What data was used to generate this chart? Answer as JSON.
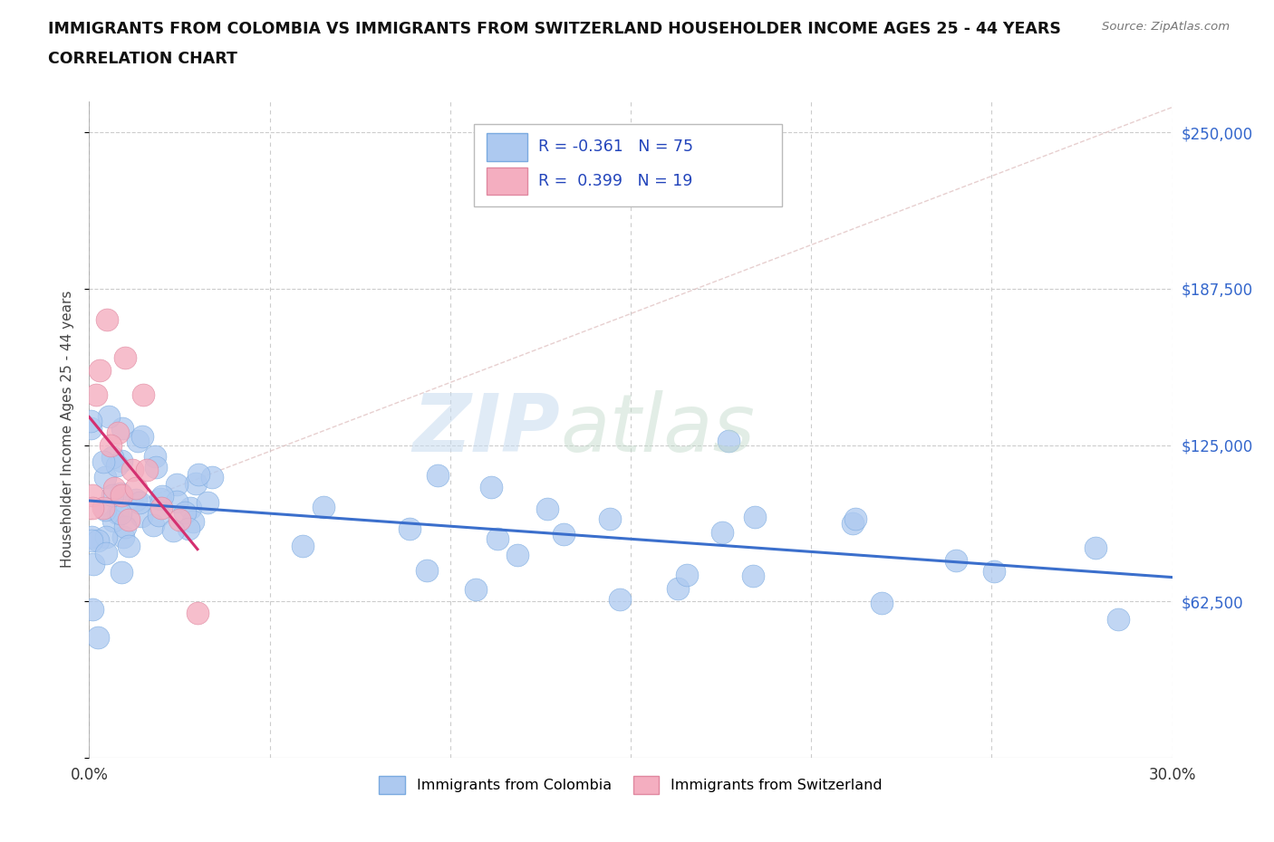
{
  "title_line1": "IMMIGRANTS FROM COLOMBIA VS IMMIGRANTS FROM SWITZERLAND HOUSEHOLDER INCOME AGES 25 - 44 YEARS",
  "title_line2": "CORRELATION CHART",
  "source_text": "Source: ZipAtlas.com",
  "ylabel": "Householder Income Ages 25 - 44 years",
  "xlim": [
    0.0,
    0.3
  ],
  "ylim": [
    0,
    262500
  ],
  "yticks": [
    0,
    62500,
    125000,
    187500,
    250000
  ],
  "xticks": [
    0.0,
    0.05,
    0.1,
    0.15,
    0.2,
    0.25,
    0.3
  ],
  "colombia_color": "#adc9f0",
  "colombia_edge": "#7aaae0",
  "switzerland_color": "#f4aec0",
  "switzerland_edge": "#e088a0",
  "colombia_trend_color": "#3b6fcc",
  "switzerland_trend_color": "#d43070",
  "colombia_R": -0.361,
  "colombia_N": 75,
  "switzerland_R": 0.399,
  "switzerland_N": 19,
  "legend_label_colombia": "Immigrants from Colombia",
  "legend_label_switzerland": "Immigrants from Switzerland",
  "background_color": "#ffffff",
  "grid_color": "#cccccc",
  "ref_line_color": "#ddbbbb",
  "watermark_zip_color": "#c8dcf0",
  "watermark_atlas_color": "#c0d8c8"
}
